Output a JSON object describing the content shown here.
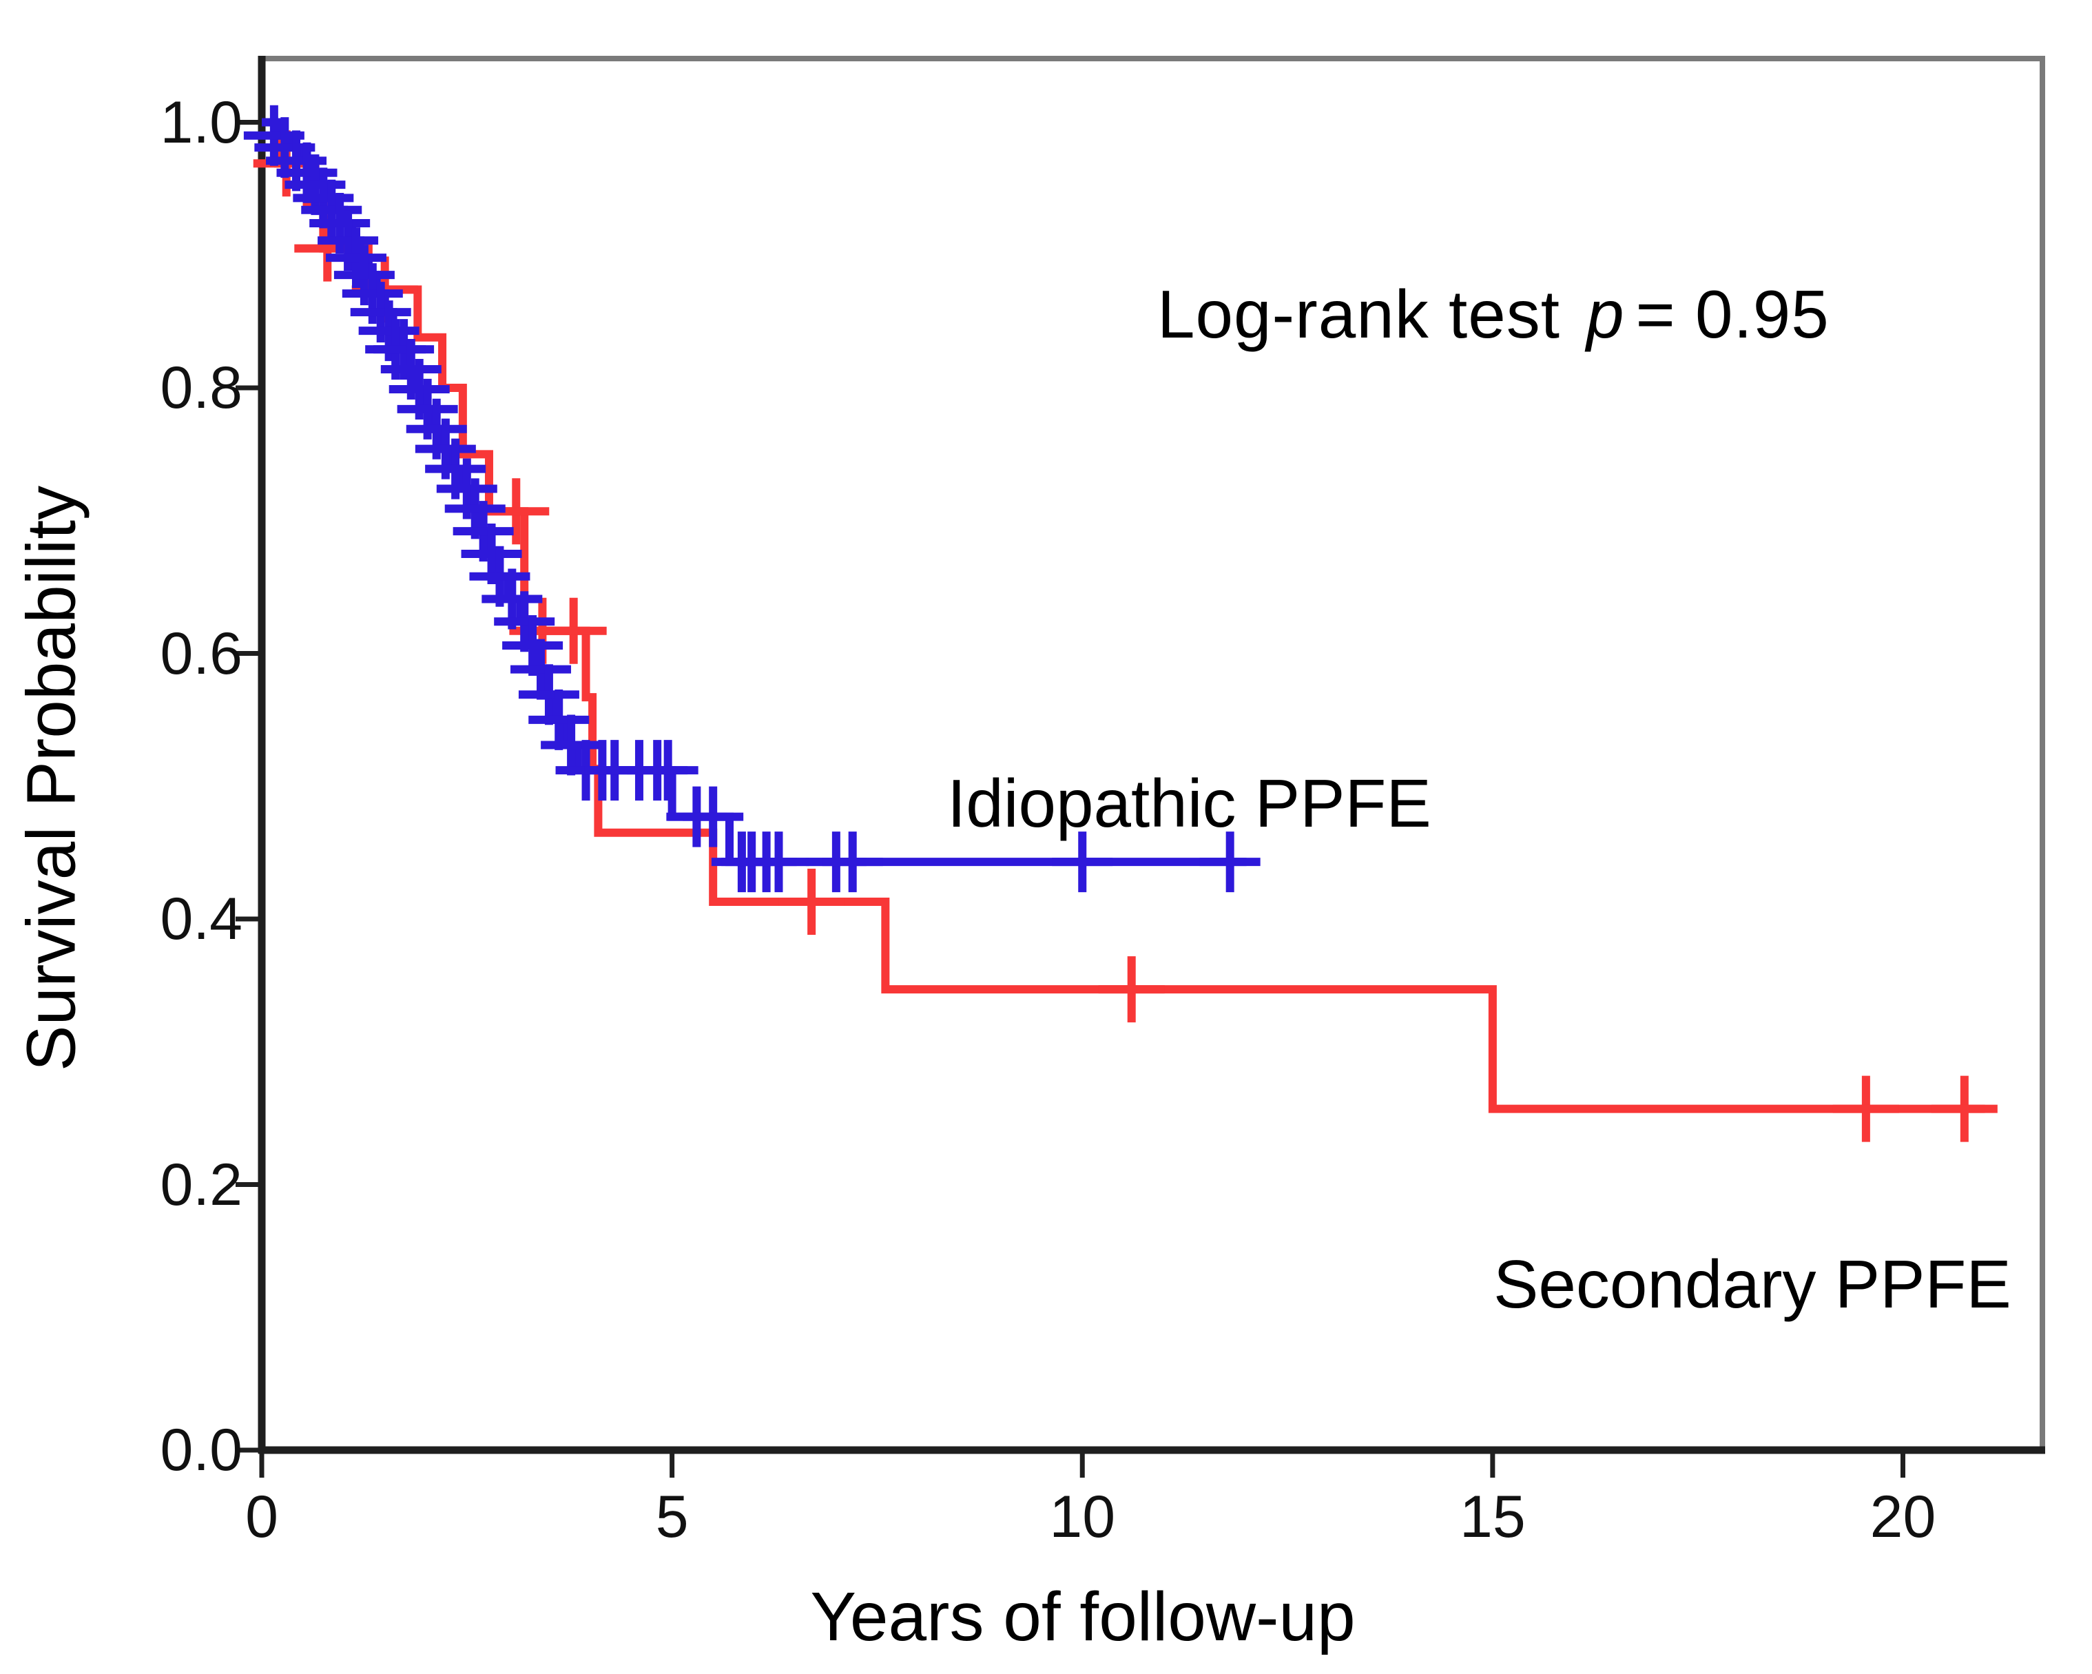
{
  "figure": {
    "background": "#ffffff",
    "text_color": "#000000"
  },
  "chart_data": {
    "type": "line",
    "subtype": "kaplan-meier-step-survival",
    "title": "",
    "xlabel": "Years of follow-up",
    "ylabel": "Survival Probability",
    "xlim": [
      0,
      21.7
    ],
    "ylim": [
      0,
      1.048
    ],
    "grid": false,
    "legend_position": "inline-labels-on-plot",
    "annotation": {
      "text_plain": "Log-rank test",
      "p_italic": "p",
      "value": "= 0.95"
    },
    "x_ticks": [
      {
        "v": 0,
        "label": "0"
      },
      {
        "v": 5,
        "label": "5"
      },
      {
        "v": 10,
        "label": "10"
      },
      {
        "v": 15,
        "label": "15"
      },
      {
        "v": 20,
        "label": "20"
      }
    ],
    "y_ticks": [
      {
        "v": 1.0,
        "label": "1.0"
      },
      {
        "v": 0.8,
        "label": "0.8"
      },
      {
        "v": 0.6,
        "label": "0.6"
      },
      {
        "v": 0.4,
        "label": "0.4"
      },
      {
        "v": 0.2,
        "label": "0.2"
      },
      {
        "v": 0.0,
        "label": "0.0"
      }
    ],
    "series": [
      {
        "name": "Secondary PPFE",
        "color": "#f83737",
        "end_x": 21.0,
        "steps": [
          [
            0,
            1.0
          ],
          [
            0.2,
            0.969
          ],
          [
            0.55,
            0.937
          ],
          [
            0.75,
            0.905
          ],
          [
            1.3,
            0.874
          ],
          [
            1.9,
            0.838
          ],
          [
            2.2,
            0.8
          ],
          [
            2.45,
            0.75
          ],
          [
            2.77,
            0.707
          ],
          [
            3.2,
            0.617
          ],
          [
            3.95,
            0.567
          ],
          [
            4.03,
            0.513
          ],
          [
            4.1,
            0.465
          ],
          [
            5.5,
            0.413
          ],
          [
            7.6,
            0.347
          ],
          [
            15.0,
            0.257
          ]
        ],
        "censors": [
          [
            0.3,
            0.969
          ],
          [
            0.8,
            0.905
          ],
          [
            1.5,
            0.874
          ],
          [
            3.1,
            0.707
          ],
          [
            3.42,
            0.617
          ],
          [
            3.8,
            0.617
          ],
          [
            6.7,
            0.413
          ],
          [
            10.6,
            0.347
          ],
          [
            19.55,
            0.257
          ],
          [
            20.75,
            0.257
          ]
        ]
      },
      {
        "name": "Idiopathic PPFE",
        "color": "#2e19da",
        "end_x": 12.0,
        "steps": [
          [
            0,
            1.0
          ],
          [
            0.2,
            0.99
          ],
          [
            0.35,
            0.981
          ],
          [
            0.5,
            0.971
          ],
          [
            0.6,
            0.962
          ],
          [
            0.7,
            0.953
          ],
          [
            0.8,
            0.943
          ],
          [
            0.9,
            0.934
          ],
          [
            1.0,
            0.924
          ],
          [
            1.1,
            0.911
          ],
          [
            1.2,
            0.898
          ],
          [
            1.3,
            0.885
          ],
          [
            1.4,
            0.871
          ],
          [
            1.5,
            0.857
          ],
          [
            1.6,
            0.843
          ],
          [
            1.7,
            0.829
          ],
          [
            1.8,
            0.814
          ],
          [
            1.9,
            0.799
          ],
          [
            2.0,
            0.784
          ],
          [
            2.1,
            0.769
          ],
          [
            2.2,
            0.754
          ],
          [
            2.3,
            0.739
          ],
          [
            2.45,
            0.724
          ],
          [
            2.55,
            0.709
          ],
          [
            2.65,
            0.692
          ],
          [
            2.75,
            0.675
          ],
          [
            2.85,
            0.658
          ],
          [
            3.0,
            0.641
          ],
          [
            3.15,
            0.624
          ],
          [
            3.25,
            0.606
          ],
          [
            3.35,
            0.588
          ],
          [
            3.45,
            0.569
          ],
          [
            3.55,
            0.55
          ],
          [
            3.7,
            0.531
          ],
          [
            3.85,
            0.512
          ],
          [
            5.0,
            0.477
          ],
          [
            5.7,
            0.443
          ]
        ],
        "censors": [
          [
            0.15,
            0.99
          ],
          [
            0.28,
            0.981
          ],
          [
            0.42,
            0.971
          ],
          [
            0.55,
            0.962
          ],
          [
            0.65,
            0.953
          ],
          [
            0.75,
            0.943
          ],
          [
            0.85,
            0.934
          ],
          [
            0.95,
            0.924
          ],
          [
            1.05,
            0.911
          ],
          [
            1.15,
            0.898
          ],
          [
            1.25,
            0.885
          ],
          [
            1.35,
            0.871
          ],
          [
            1.45,
            0.857
          ],
          [
            1.55,
            0.843
          ],
          [
            1.63,
            0.829
          ],
          [
            1.73,
            0.829
          ],
          [
            1.82,
            0.814
          ],
          [
            1.92,
            0.799
          ],
          [
            2.02,
            0.784
          ],
          [
            2.13,
            0.769
          ],
          [
            2.24,
            0.754
          ],
          [
            2.36,
            0.739
          ],
          [
            2.5,
            0.724
          ],
          [
            2.6,
            0.709
          ],
          [
            2.7,
            0.692
          ],
          [
            2.8,
            0.675
          ],
          [
            2.9,
            0.658
          ],
          [
            3.05,
            0.641
          ],
          [
            3.2,
            0.624
          ],
          [
            3.3,
            0.606
          ],
          [
            3.4,
            0.588
          ],
          [
            3.5,
            0.569
          ],
          [
            3.62,
            0.55
          ],
          [
            3.77,
            0.531
          ],
          [
            3.95,
            0.512
          ],
          [
            4.15,
            0.512
          ],
          [
            4.3,
            0.512
          ],
          [
            4.6,
            0.512
          ],
          [
            4.82,
            0.512
          ],
          [
            4.95,
            0.512
          ],
          [
            5.3,
            0.477
          ],
          [
            5.5,
            0.477
          ],
          [
            5.85,
            0.443
          ],
          [
            5.97,
            0.443
          ],
          [
            6.15,
            0.443
          ],
          [
            6.3,
            0.443
          ],
          [
            7.0,
            0.443
          ],
          [
            7.2,
            0.443
          ],
          [
            10.0,
            0.443
          ],
          [
            11.8,
            0.443
          ]
        ]
      }
    ]
  }
}
